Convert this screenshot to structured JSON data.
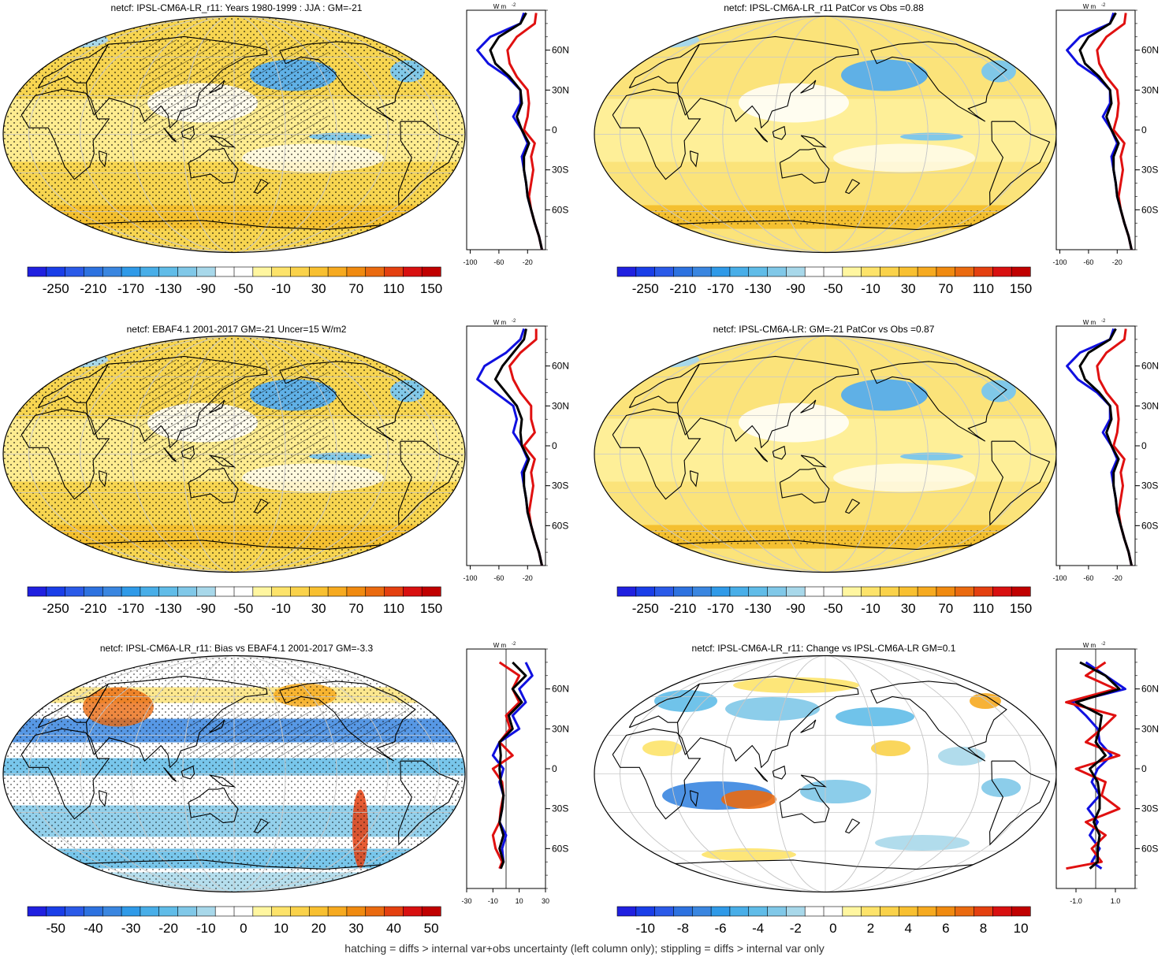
{
  "footer": "hatching = diffs > internal var+obs uncertainty (left column only); stippling = diffs > internal var only",
  "units_label": "W m",
  "units_exp": "-2",
  "lat_ticks": [
    "60N",
    "30N",
    "0",
    "30S",
    "60S"
  ],
  "colors": {
    "blue": "#1010e0",
    "red": "#e01010",
    "black": "#000000",
    "ocean_default": "#f7d550",
    "land_line": "#000000"
  },
  "chart_data": [
    {
      "type": "heatmap",
      "title": "netcf: IPSL-CM6A-LR_r11: Years 1980-1999 : JJA : GM=-21",
      "colorbar_ticks": [
        "-250",
        "-210",
        "-170",
        "-130",
        "-90",
        "-50",
        "-10",
        "30",
        "70",
        "110",
        "150"
      ],
      "colorbar_range": [
        -270,
        170
      ],
      "side_xticks": [
        "-100",
        "-60",
        "-20"
      ],
      "side_xrange": [
        -105,
        5
      ],
      "side_series": [
        {
          "color": "blue",
          "lat": [
            -90,
            -80,
            -70,
            -60,
            -50,
            -40,
            -30,
            -20,
            -10,
            0,
            10,
            20,
            30,
            40,
            50,
            60,
            70,
            80,
            88
          ],
          "values": [
            0,
            -4,
            -10,
            -15,
            -20,
            -22,
            -25,
            -28,
            -20,
            -28,
            -40,
            -30,
            -30,
            -48,
            -75,
            -90,
            -72,
            -30,
            -25
          ]
        },
        {
          "color": "red",
          "lat": [
            -90,
            -80,
            -70,
            -60,
            -50,
            -40,
            -30,
            -20,
            -10,
            0,
            10,
            20,
            30,
            40,
            50,
            60,
            70,
            80,
            88
          ],
          "values": [
            0,
            -4,
            -10,
            -15,
            -18,
            -15,
            -12,
            -15,
            -10,
            -25,
            -20,
            -18,
            -20,
            -35,
            -45,
            -48,
            -35,
            -10,
            -8
          ]
        },
        {
          "color": "black",
          "lat": [
            -90,
            -80,
            -70,
            -60,
            -50,
            -40,
            -30,
            -20,
            -10,
            0,
            10,
            20,
            30,
            40,
            50,
            60,
            70,
            80,
            88
          ],
          "values": [
            0,
            -4,
            -10,
            -15,
            -20,
            -22,
            -25,
            -25,
            -18,
            -28,
            -35,
            -28,
            -30,
            -45,
            -65,
            -72,
            -60,
            -30,
            -22
          ]
        }
      ]
    },
    {
      "type": "heatmap",
      "title": "netcf: IPSL-CM6A-LR_r11 PatCor vs Obs =0.88",
      "colorbar_ticks": [
        "-250",
        "-210",
        "-170",
        "-130",
        "-90",
        "-50",
        "-10",
        "30",
        "70",
        "110",
        "150"
      ],
      "colorbar_range": [
        -270,
        170
      ],
      "side_xticks": [
        "-100",
        "-60",
        "-20"
      ],
      "side_xrange": [
        -105,
        5
      ],
      "side_series": [
        {
          "color": "blue",
          "lat": [
            -90,
            -80,
            -70,
            -60,
            -50,
            -40,
            -30,
            -20,
            -10,
            0,
            10,
            20,
            30,
            40,
            50,
            60,
            70,
            80,
            88
          ],
          "values": [
            0,
            -4,
            -10,
            -15,
            -20,
            -22,
            -25,
            -28,
            -20,
            -28,
            -40,
            -30,
            -30,
            -48,
            -75,
            -90,
            -72,
            -30,
            -25
          ]
        },
        {
          "color": "red",
          "lat": [
            -90,
            -80,
            -70,
            -60,
            -50,
            -40,
            -30,
            -20,
            -10,
            0,
            10,
            20,
            30,
            40,
            50,
            60,
            70,
            80,
            88
          ],
          "values": [
            0,
            -4,
            -10,
            -15,
            -18,
            -15,
            -12,
            -15,
            -10,
            -25,
            -20,
            -18,
            -20,
            -35,
            -45,
            -48,
            -35,
            -10,
            -8
          ]
        },
        {
          "color": "black",
          "lat": [
            -90,
            -80,
            -70,
            -60,
            -50,
            -40,
            -30,
            -20,
            -10,
            0,
            10,
            20,
            30,
            40,
            50,
            60,
            70,
            80,
            88
          ],
          "values": [
            0,
            -4,
            -10,
            -15,
            -20,
            -22,
            -25,
            -25,
            -18,
            -28,
            -35,
            -28,
            -30,
            -45,
            -65,
            -72,
            -60,
            -30,
            -22
          ]
        }
      ]
    },
    {
      "type": "heatmap",
      "title": "netcf: EBAF4.1 2001-2017 GM=-21 Uncer=15 W/m2",
      "colorbar_ticks": [
        "-250",
        "-210",
        "-170",
        "-130",
        "-90",
        "-50",
        "-10",
        "30",
        "70",
        "110",
        "150"
      ],
      "colorbar_range": [
        -270,
        170
      ],
      "side_xticks": [
        "-100",
        "-60",
        "-20"
      ],
      "side_xrange": [
        -105,
        5
      ],
      "side_series": [
        {
          "color": "blue",
          "lat": [
            -90,
            -80,
            -70,
            -60,
            -50,
            -40,
            -30,
            -20,
            -10,
            0,
            10,
            20,
            30,
            40,
            50,
            60,
            70,
            80,
            88
          ],
          "values": [
            0,
            -4,
            -10,
            -15,
            -20,
            -22,
            -25,
            -28,
            -20,
            -28,
            -40,
            -35,
            -40,
            -65,
            -90,
            -80,
            -50,
            -30,
            -25
          ]
        },
        {
          "color": "red",
          "lat": [
            -90,
            -80,
            -70,
            -60,
            -50,
            -40,
            -30,
            -20,
            -10,
            0,
            10,
            20,
            30,
            40,
            50,
            60,
            70,
            80,
            88
          ],
          "values": [
            0,
            -4,
            -10,
            -15,
            -18,
            -15,
            -12,
            -15,
            -10,
            -25,
            -10,
            -15,
            -15,
            -30,
            -40,
            -45,
            -30,
            -8,
            -8
          ]
        },
        {
          "color": "black",
          "lat": [
            -90,
            -80,
            -70,
            -60,
            -50,
            -40,
            -30,
            -20,
            -10,
            0,
            10,
            20,
            30,
            40,
            50,
            60,
            70,
            80,
            88
          ],
          "values": [
            0,
            -4,
            -10,
            -15,
            -20,
            -22,
            -25,
            -25,
            -18,
            -28,
            -30,
            -28,
            -35,
            -50,
            -65,
            -55,
            -40,
            -25,
            -22
          ]
        }
      ]
    },
    {
      "type": "heatmap",
      "title": "netcf: IPSL-CM6A-LR: GM=-21 PatCor vs Obs =0.87",
      "colorbar_ticks": [
        "-250",
        "-210",
        "-170",
        "-130",
        "-90",
        "-50",
        "-10",
        "30",
        "70",
        "110",
        "150"
      ],
      "colorbar_range": [
        -270,
        170
      ],
      "side_xticks": [
        "-100",
        "-60",
        "-20"
      ],
      "side_xrange": [
        -105,
        5
      ],
      "side_series": [
        {
          "color": "blue",
          "lat": [
            -90,
            -80,
            -70,
            -60,
            -50,
            -40,
            -30,
            -20,
            -10,
            0,
            10,
            20,
            30,
            40,
            50,
            60,
            70,
            80,
            88
          ],
          "values": [
            0,
            -4,
            -10,
            -15,
            -20,
            -22,
            -25,
            -28,
            -20,
            -28,
            -40,
            -30,
            -30,
            -48,
            -75,
            -90,
            -72,
            -30,
            -25
          ]
        },
        {
          "color": "red",
          "lat": [
            -90,
            -80,
            -70,
            -60,
            -50,
            -40,
            -30,
            -20,
            -10,
            0,
            10,
            20,
            30,
            40,
            50,
            60,
            70,
            80,
            88
          ],
          "values": [
            0,
            -4,
            -10,
            -15,
            -18,
            -15,
            -12,
            -15,
            -10,
            -25,
            -20,
            -18,
            -20,
            -35,
            -45,
            -48,
            -35,
            -10,
            -8
          ]
        },
        {
          "color": "black",
          "lat": [
            -90,
            -80,
            -70,
            -60,
            -50,
            -40,
            -30,
            -20,
            -10,
            0,
            10,
            20,
            30,
            40,
            50,
            60,
            70,
            80,
            88
          ],
          "values": [
            0,
            -4,
            -10,
            -15,
            -20,
            -22,
            -25,
            -25,
            -18,
            -28,
            -35,
            -28,
            -30,
            -45,
            -65,
            -72,
            -60,
            -30,
            -22
          ]
        }
      ]
    },
    {
      "type": "heatmap",
      "title": "netcf: IPSL-CM6A-LR_r11: Bias vs EBAF4.1 2001-2017 GM=-3.3",
      "colorbar_ticks": [
        "-50",
        "-40",
        "-30",
        "-20",
        "-10",
        "0",
        "10",
        "20",
        "30",
        "40",
        "50"
      ],
      "colorbar_range": [
        -55,
        55
      ],
      "side_xticks": [
        "-30",
        "-10",
        "10",
        "30"
      ],
      "side_xrange": [
        -30,
        30
      ],
      "side_series": [
        {
          "color": "blue",
          "lat": [
            -75,
            -70,
            -60,
            -50,
            -40,
            -30,
            -20,
            -10,
            0,
            10,
            20,
            30,
            40,
            50,
            60,
            70,
            80
          ],
          "values": [
            -5,
            -2,
            -3,
            0,
            -5,
            -3,
            -2,
            -5,
            -2,
            -10,
            -5,
            10,
            5,
            15,
            10,
            20,
            15
          ]
        },
        {
          "color": "red",
          "lat": [
            -75,
            -70,
            -60,
            -50,
            -40,
            -30,
            -20,
            -10,
            0,
            10,
            20,
            30,
            40,
            50,
            60,
            70,
            80
          ],
          "values": [
            -5,
            -3,
            -8,
            -10,
            -5,
            -4,
            -2,
            -3,
            -10,
            5,
            -5,
            3,
            0,
            10,
            5,
            10,
            -5
          ]
        },
        {
          "color": "black",
          "lat": [
            -75,
            -70,
            -60,
            -50,
            -40,
            -30,
            -20,
            -10,
            0,
            10,
            20,
            30,
            40,
            50,
            60,
            70,
            80
          ],
          "values": [
            -4,
            -2,
            -5,
            -2,
            -5,
            -3,
            -2,
            -4,
            -5,
            -4,
            -5,
            5,
            2,
            12,
            5,
            15,
            5
          ]
        }
      ]
    },
    {
      "type": "heatmap",
      "title": "netcf: IPSL-CM6A-LR_r11: Change vs IPSL-CM6A-LR GM=0.1",
      "colorbar_ticks": [
        "-10",
        "-8",
        "-6",
        "-4",
        "-2",
        "0",
        "2",
        "4",
        "6",
        "8",
        "10"
      ],
      "colorbar_range": [
        -11,
        11
      ],
      "side_xticks": [
        "-1.0",
        "1.0"
      ],
      "side_xrange": [
        -2,
        2
      ],
      "side_series": [
        {
          "color": "blue",
          "lat": [
            -75,
            -70,
            -60,
            -50,
            -40,
            -30,
            -20,
            -10,
            0,
            10,
            20,
            30,
            40,
            50,
            60,
            70,
            80
          ],
          "values": [
            0.3,
            -0.2,
            0.2,
            -0.3,
            0.1,
            -0.4,
            0.2,
            -0.2,
            0.1,
            0.8,
            0.2,
            0.1,
            -0.5,
            -1.2,
            1.5,
            0.5,
            -0.5
          ]
        },
        {
          "color": "red",
          "lat": [
            -75,
            -70,
            -60,
            -50,
            -40,
            -30,
            -20,
            -10,
            0,
            10,
            20,
            30,
            40,
            50,
            60,
            70,
            80
          ],
          "values": [
            -1.5,
            0.3,
            -0.2,
            0.5,
            -0.5,
            1.2,
            0.3,
            0.5,
            -1.0,
            1.2,
            -0.5,
            0.3,
            1.0,
            -1.5,
            1.0,
            -0.5,
            0.5
          ]
        },
        {
          "color": "black",
          "lat": [
            -75,
            -70,
            -60,
            -50,
            -40,
            -30,
            -20,
            -10,
            0,
            10,
            20,
            30,
            40,
            50,
            60,
            70,
            80
          ],
          "values": [
            -0.3,
            0.1,
            0.1,
            0.2,
            -0.1,
            0.2,
            0.2,
            0.1,
            -0.3,
            0.5,
            0.0,
            0.2,
            0.3,
            -1.0,
            1.2,
            0.5,
            -0.8
          ]
        }
      ]
    }
  ]
}
